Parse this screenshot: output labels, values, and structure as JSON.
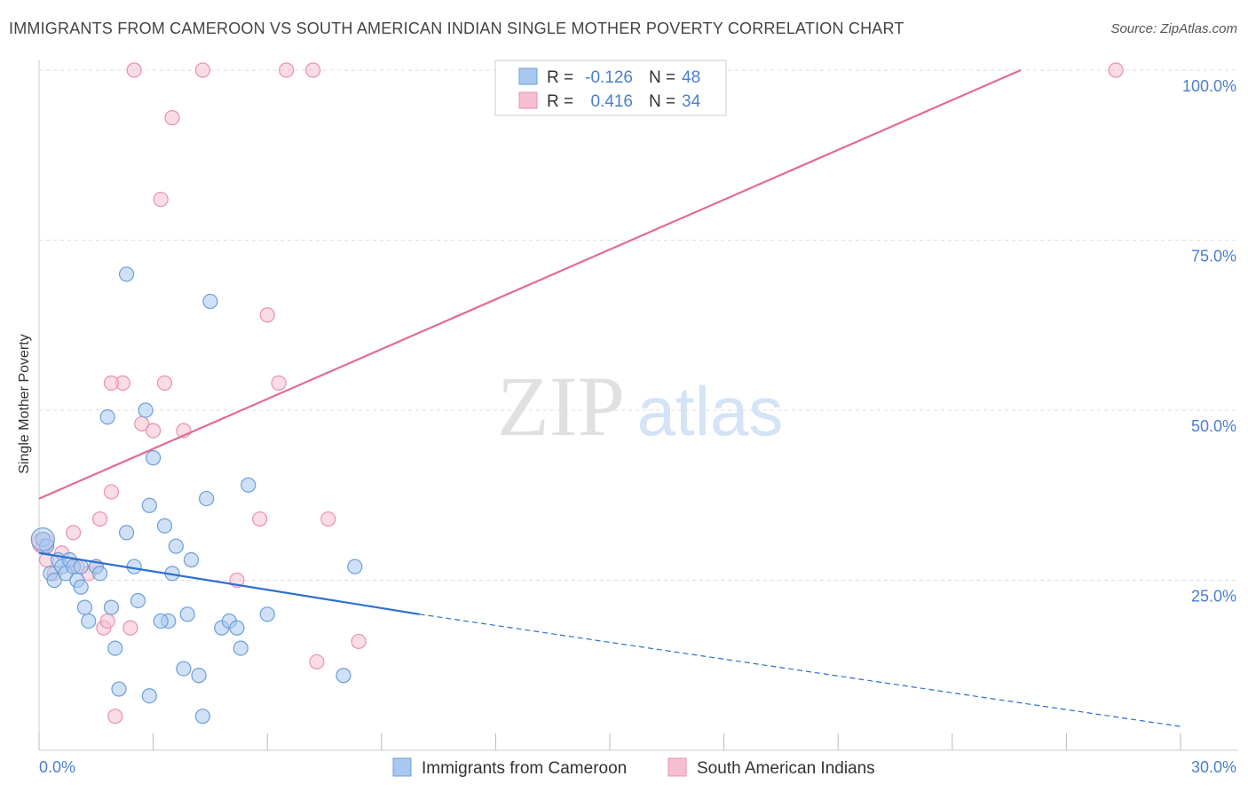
{
  "title": "IMMIGRANTS FROM CAMEROON VS SOUTH AMERICAN INDIAN SINGLE MOTHER POVERTY CORRELATION CHART",
  "source": "Source: ZipAtlas.com",
  "watermark": {
    "zip": "ZIP",
    "atlas": "atlas"
  },
  "colors": {
    "blue_fill": "#a9c8f0",
    "blue_stroke": "#6b9fd8",
    "blue_line": "#2d6fd0",
    "pink_fill": "#f6bfd0",
    "pink_stroke": "#e891b0",
    "pink_line": "#e26b96",
    "tick_label": "#4a7fd0",
    "grid": "#dddddd"
  },
  "legend_stats": [
    {
      "r_label": "R = ",
      "r_value": "-0.126",
      "n_label": "N = ",
      "n_value": "48",
      "series": "blue"
    },
    {
      "r_label": "R = ",
      "r_value": "0.416",
      "n_label": "N = ",
      "n_value": "34",
      "series": "pink"
    }
  ],
  "chart_data": {
    "type": "scatter",
    "title": "IMMIGRANTS FROM CAMEROON VS SOUTH AMERICAN INDIAN SINGLE MOTHER POVERTY CORRELATION CHART",
    "xlabel": "",
    "ylabel": "Single Mother Poverty",
    "xlim": [
      0,
      30
    ],
    "ylim": [
      0,
      100
    ],
    "x_tick_labels": [
      "0.0%",
      "30.0%"
    ],
    "y_ticks": [
      25,
      50,
      75,
      100
    ],
    "y_tick_labels": [
      "25.0%",
      "50.0%",
      "75.0%",
      "100.0%"
    ],
    "grid": true,
    "legend_position": "bottom",
    "series": [
      {
        "name": "Immigrants from Cameroon",
        "color": "blue",
        "points": [
          [
            0.1,
            31
          ],
          [
            0.2,
            30
          ],
          [
            0.3,
            26
          ],
          [
            0.4,
            25
          ],
          [
            0.5,
            28
          ],
          [
            0.6,
            27
          ],
          [
            0.7,
            26
          ],
          [
            0.8,
            28
          ],
          [
            0.9,
            27
          ],
          [
            1.0,
            25
          ],
          [
            1.1,
            24
          ],
          [
            1.2,
            21
          ],
          [
            1.3,
            19
          ],
          [
            1.1,
            27
          ],
          [
            1.5,
            27
          ],
          [
            1.6,
            26
          ],
          [
            1.8,
            49
          ],
          [
            1.9,
            21
          ],
          [
            2.0,
            15
          ],
          [
            2.1,
            9
          ],
          [
            2.3,
            32
          ],
          [
            2.5,
            27
          ],
          [
            2.6,
            22
          ],
          [
            2.8,
            50
          ],
          [
            2.9,
            36
          ],
          [
            3.0,
            43
          ],
          [
            2.3,
            70
          ],
          [
            3.3,
            33
          ],
          [
            3.4,
            19
          ],
          [
            3.6,
            30
          ],
          [
            2.9,
            8
          ],
          [
            3.2,
            19
          ],
          [
            3.5,
            26
          ],
          [
            4.0,
            28
          ],
          [
            4.2,
            11
          ],
          [
            4.3,
            5
          ],
          [
            4.4,
            37
          ],
          [
            3.8,
            12
          ],
          [
            3.9,
            20
          ],
          [
            4.5,
            66
          ],
          [
            4.8,
            18
          ],
          [
            5.0,
            19
          ],
          [
            5.2,
            18
          ],
          [
            5.3,
            15
          ],
          [
            5.5,
            39
          ],
          [
            6.0,
            20
          ],
          [
            8.0,
            11
          ],
          [
            8.3,
            27
          ]
        ],
        "trend": {
          "x0": 0,
          "y0": 29,
          "x1": 10,
          "y1": 20,
          "dashed_to_x": 30,
          "dashed_to_y": 3.5
        }
      },
      {
        "name": "South American Indians",
        "color": "pink",
        "points": [
          [
            0.1,
            30
          ],
          [
            0.2,
            28
          ],
          [
            0.4,
            26
          ],
          [
            0.6,
            29
          ],
          [
            0.9,
            32
          ],
          [
            1.0,
            27
          ],
          [
            1.3,
            26
          ],
          [
            1.5,
            27
          ],
          [
            1.7,
            18
          ],
          [
            1.8,
            19
          ],
          [
            1.6,
            34
          ],
          [
            1.9,
            38
          ],
          [
            2.2,
            54
          ],
          [
            2.0,
            5
          ],
          [
            2.4,
            18
          ],
          [
            2.5,
            100
          ],
          [
            2.7,
            48
          ],
          [
            3.0,
            47
          ],
          [
            3.2,
            81
          ],
          [
            3.3,
            54
          ],
          [
            3.5,
            93
          ],
          [
            3.8,
            47
          ],
          [
            4.3,
            100
          ],
          [
            5.2,
            25
          ],
          [
            5.8,
            34
          ],
          [
            6.0,
            64
          ],
          [
            6.3,
            54
          ],
          [
            6.5,
            100
          ],
          [
            7.2,
            100
          ],
          [
            7.3,
            13
          ],
          [
            7.6,
            34
          ],
          [
            8.4,
            16
          ],
          [
            1.9,
            54
          ],
          [
            28.3,
            100
          ]
        ],
        "trend": {
          "x0": 0,
          "y0": 37,
          "x1": 25.8,
          "y1": 100
        }
      }
    ]
  }
}
